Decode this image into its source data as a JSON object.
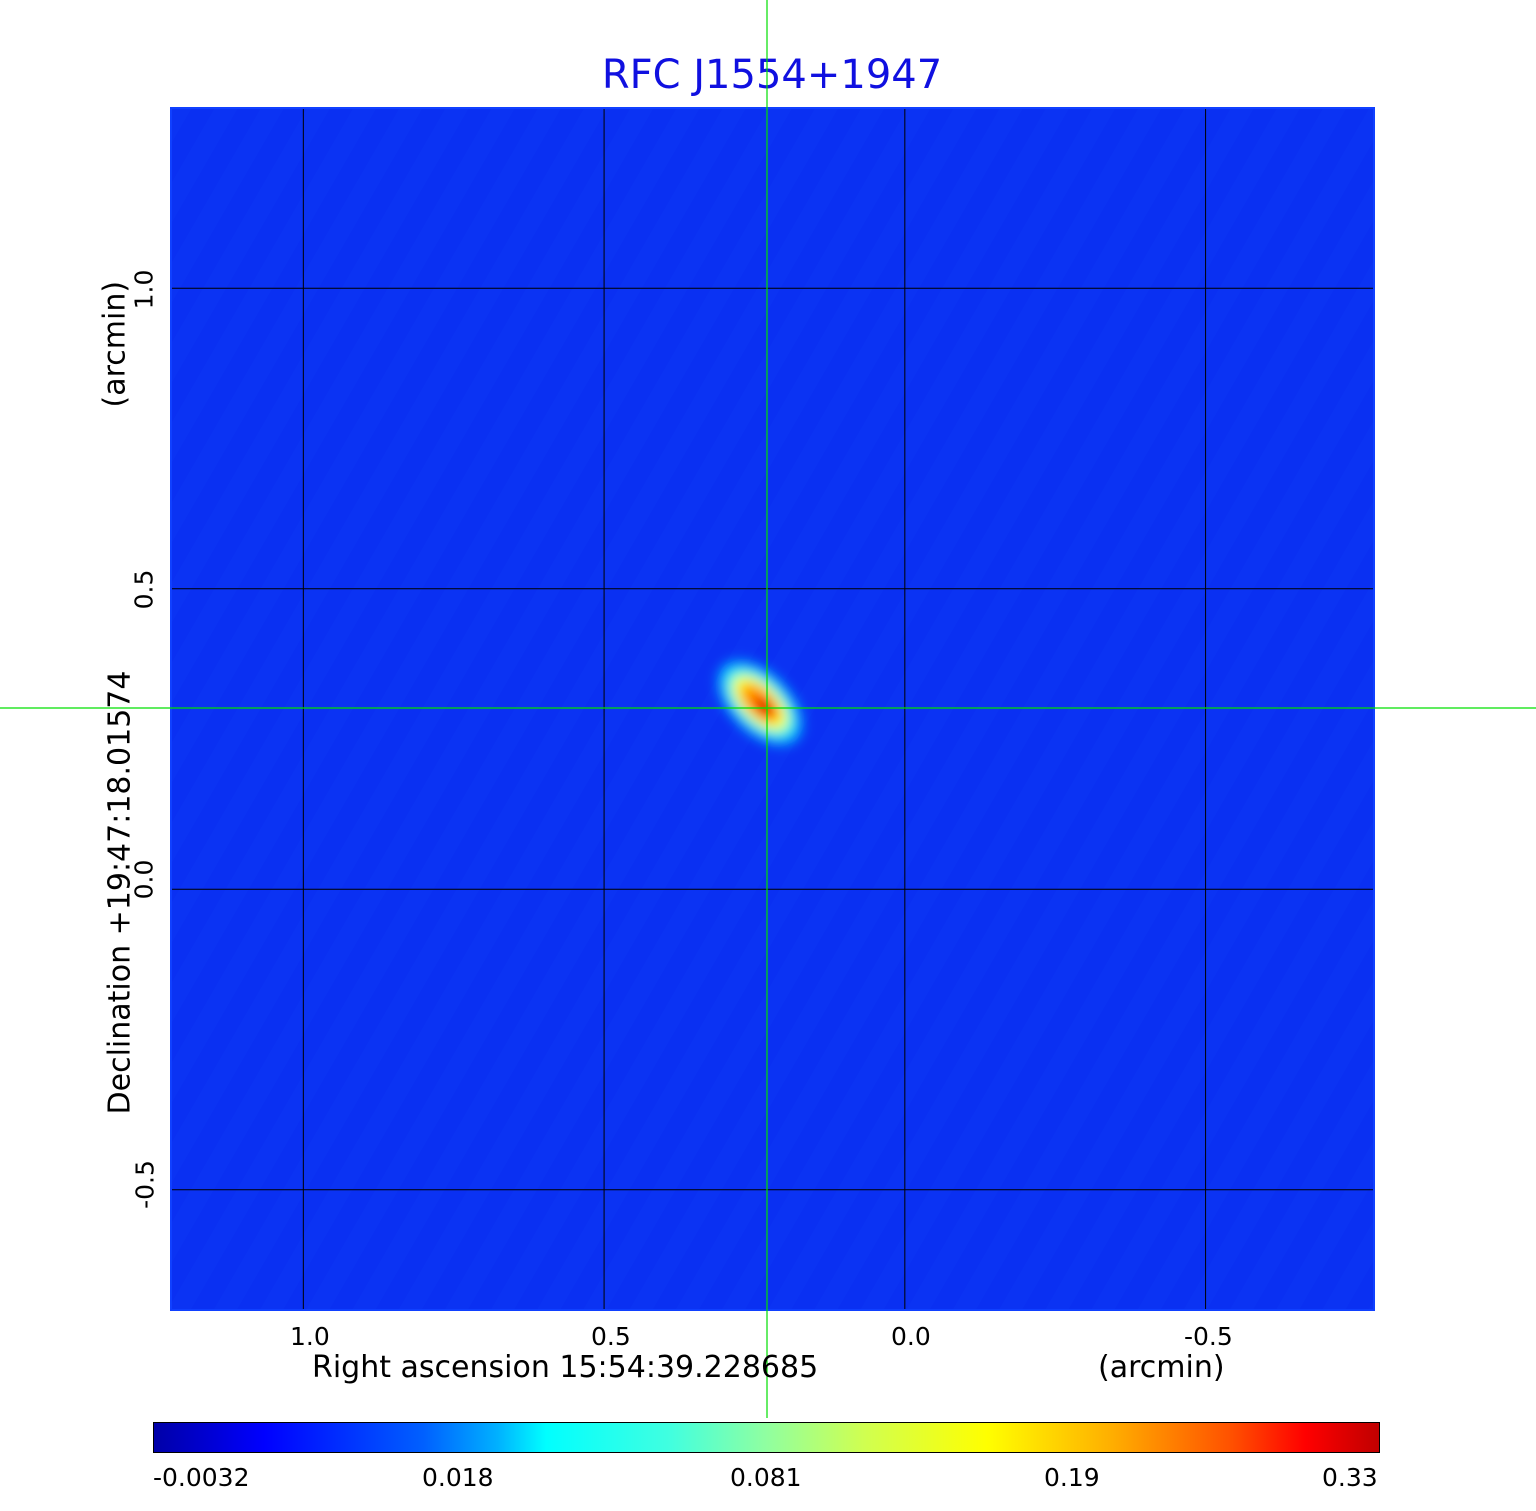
{
  "chart_data": {
    "type": "heatmap",
    "title": "RFC J1554+1947",
    "xlabel": "Right ascension  15:54:39.228685",
    "xunit": "(arcmin)",
    "ylabel": "Declination  +19:47:18.01574",
    "yunit": "(arcmin)",
    "x_ticks": [
      "1.0",
      "0.5",
      "0.0",
      "-0.5"
    ],
    "y_ticks": [
      "1.0",
      "0.5",
      "0.0",
      "-0.5"
    ],
    "xlim": [
      1.22,
      -0.78
    ],
    "ylim": [
      -0.7,
      1.3
    ],
    "grid": true,
    "colormap": "jet",
    "colorbar_ticks": [
      "-0.0032",
      "0.018",
      "0.081",
      "0.19",
      "0.33"
    ],
    "colorbar_range": [
      -0.0032,
      0.33
    ],
    "source_peak": {
      "x": 0.23,
      "y": 0.3,
      "value": 0.33
    },
    "crosshair": {
      "x": 0.23,
      "y": 0.3
    },
    "background_color": "#0a30f2",
    "crosshair_color": "#00e000"
  }
}
